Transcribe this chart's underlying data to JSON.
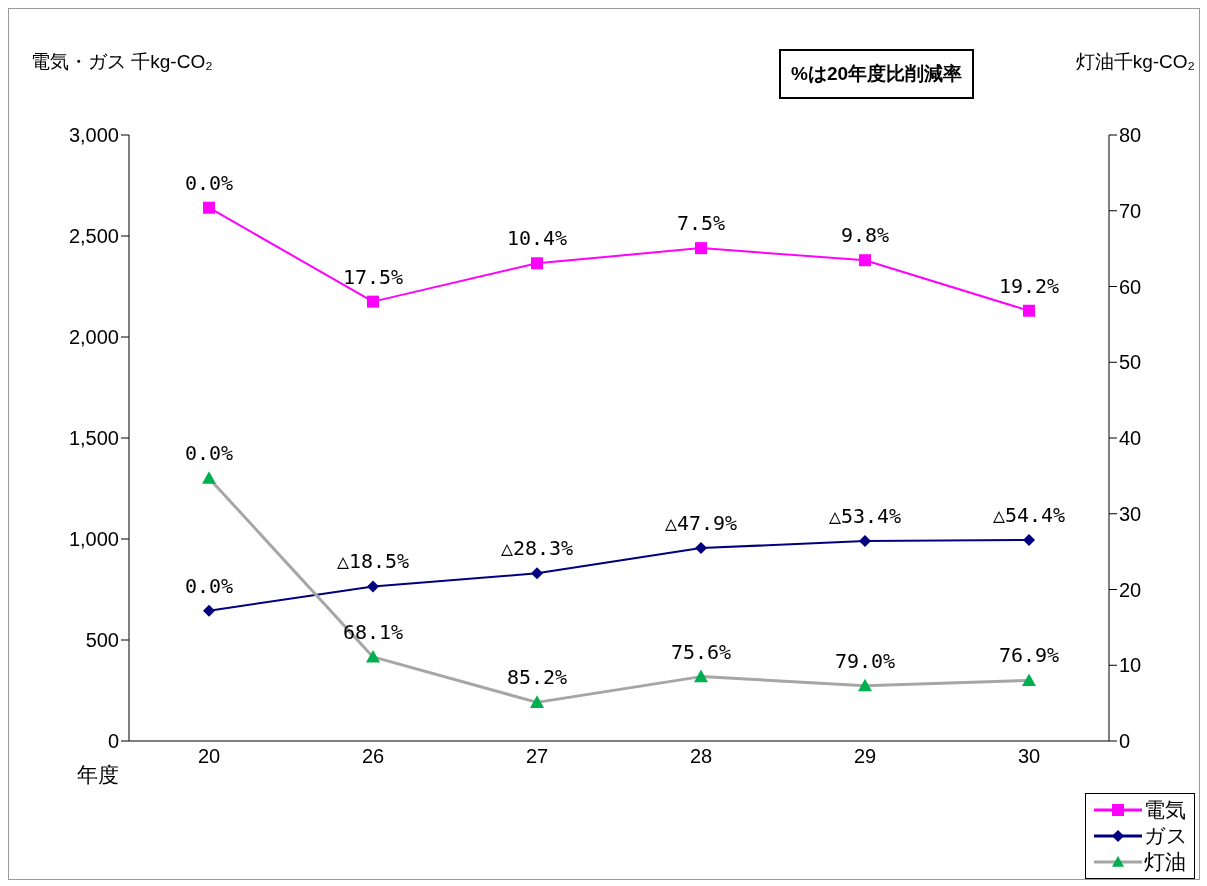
{
  "chart_data": {
    "type": "line",
    "ylabel": "電気・ガス 千kg-CO₂",
    "y2label": "灯油千kg-CO₂",
    "xlabel": "年度",
    "annotations": [
      "%は20年度比削減率",
      {
        "text": "0.0%",
        "x": "20",
        "y": 2640
      },
      {
        "text": "17.5%",
        "x": "26",
        "y": 2175
      },
      {
        "text": "10.4%",
        "x": "27",
        "y": 2365
      },
      {
        "text": "7.5%",
        "x": "28",
        "y": 2440
      },
      {
        "text": "9.8%",
        "x": "29",
        "y": 2380
      },
      {
        "text": "19.2%",
        "x": "30",
        "y": 2130
      },
      {
        "text": "0.0%",
        "x": "20",
        "y": 645
      },
      {
        "text": "△18.5%",
        "x": "26",
        "y": 765
      },
      {
        "text": "△28.3%",
        "x": "27",
        "y": 830
      },
      {
        "text": "△47.9%",
        "x": "28",
        "y": 955
      },
      {
        "text": "△53.4%",
        "x": "29",
        "y": 990
      },
      {
        "text": "△54.4%",
        "x": "30",
        "y": 995
      },
      {
        "text": "0.0%",
        "x": "20",
        "y": 1301
      },
      {
        "text": "68.1%",
        "x": "26",
        "y": 416
      },
      {
        "text": "85.2%",
        "x": "27",
        "y": 191
      },
      {
        "text": "75.6%",
        "x": "28",
        "y": 319
      },
      {
        "text": "79.0%",
        "x": "29",
        "y": 274
      },
      {
        "text": "76.9%",
        "x": "30",
        "y": 300
      }
    ],
    "categories": [
      "20",
      "26",
      "27",
      "28",
      "29",
      "30"
    ],
    "series": [
      {
        "name": "電気",
        "color": "#ff00ff",
        "marker": "square",
        "values": [
          2640,
          2175,
          2365,
          2440,
          2380,
          2130
        ]
      },
      {
        "name": "ガス",
        "color": "#000080",
        "marker": "diamond",
        "values": [
          645,
          765,
          830,
          955,
          990,
          995
        ]
      },
      {
        "name": "灯油",
        "color": "#a6a6a6",
        "colors": [
          "#00b050",
          "#00b050",
          "#00b050",
          "#00b050",
          "#00b050",
          "#00b050"
        ],
        "marker": "triangle",
        "axis": "y2",
        "values": [
          34.7,
          11.1,
          5.1,
          8.5,
          7.3,
          8.0
        ]
      }
    ],
    "ylim": [
      0,
      3000
    ],
    "yticks": [
      {
        "value": 0,
        "label": "0"
      },
      {
        "value": 500,
        "label": "500"
      },
      {
        "value": 1000,
        "label": "1,000"
      },
      {
        "value": 1500,
        "label": "1,500"
      },
      {
        "value": 2000,
        "label": "2,000"
      },
      {
        "value": 2500,
        "label": "2,500"
      },
      {
        "value": 3000,
        "label": "3,000"
      }
    ],
    "y2lim": [
      0,
      80
    ],
    "y2ticks": [
      0,
      10,
      20,
      30,
      40,
      50,
      60,
      70,
      80
    ],
    "grid": false,
    "legend": "bottom right",
    "line_style": "solid"
  }
}
